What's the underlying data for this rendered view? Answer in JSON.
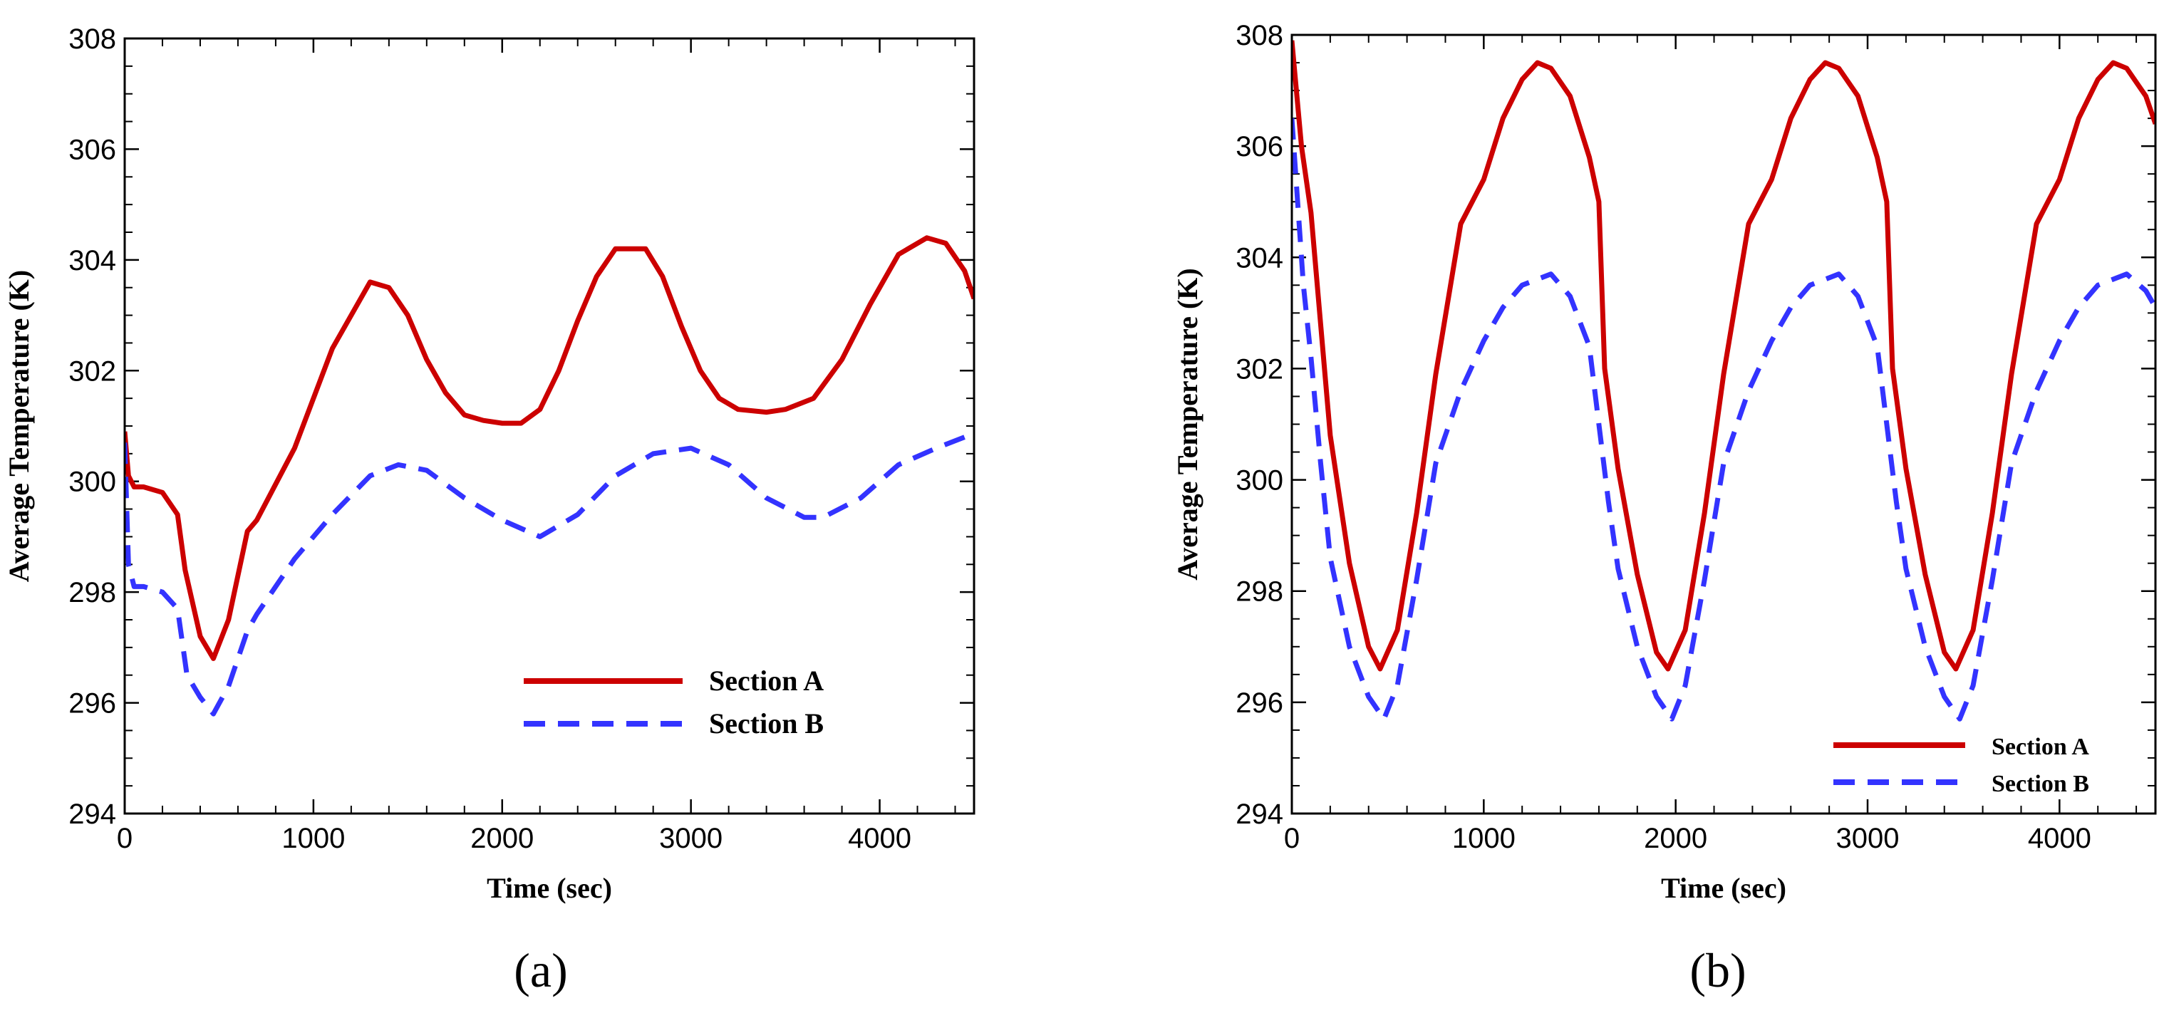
{
  "figure": {
    "panel_a_label": "(a)",
    "panel_b_label": "(b)"
  },
  "colors": {
    "section_a": "#cc0000",
    "section_b": "#3333ff"
  },
  "chart_data": [
    {
      "type": "line",
      "panel": "(a)",
      "title": "",
      "xlabel": "Time (sec)",
      "ylabel": "Average Temperature (K)",
      "xlim": [
        0,
        4500
      ],
      "ylim": [
        294,
        308
      ],
      "xticks": [
        0,
        1000,
        2000,
        3000,
        4000
      ],
      "xtick_labels": [
        "0",
        "1000",
        "2000",
        "3000",
        "4000"
      ],
      "yticks": [
        294,
        296,
        298,
        300,
        302,
        304,
        306,
        308
      ],
      "ytick_labels": [
        "294",
        "296",
        "298",
        "300",
        "302",
        "304",
        "306",
        "308"
      ],
      "legend_position": "lower-right",
      "series": [
        {
          "name": "Section A",
          "style": "solid",
          "x": [
            0,
            20,
            50,
            100,
            200,
            280,
            320,
            400,
            470,
            550,
            650,
            700,
            900,
            1100,
            1300,
            1400,
            1500,
            1600,
            1700,
            1800,
            1900,
            2000,
            2100,
            2200,
            2300,
            2400,
            2500,
            2600,
            2700,
            2760,
            2850,
            2950,
            3050,
            3150,
            3250,
            3400,
            3500,
            3650,
            3800,
            3950,
            4100,
            4250,
            4350,
            4450,
            4500
          ],
          "y": [
            300.9,
            300.1,
            299.9,
            299.9,
            299.8,
            299.4,
            298.4,
            297.2,
            296.8,
            297.5,
            299.1,
            299.3,
            300.6,
            302.4,
            303.6,
            303.5,
            303.0,
            302.2,
            301.6,
            301.2,
            301.1,
            301.05,
            301.05,
            301.3,
            302.0,
            302.9,
            303.7,
            304.2,
            304.2,
            304.2,
            303.7,
            302.8,
            302.0,
            301.5,
            301.3,
            301.25,
            301.3,
            301.5,
            302.2,
            303.2,
            304.1,
            304.4,
            304.3,
            303.8,
            303.3
          ]
        },
        {
          "name": "Section B",
          "style": "dashed",
          "x": [
            0,
            20,
            50,
            100,
            200,
            280,
            330,
            400,
            470,
            550,
            650,
            700,
            900,
            1100,
            1300,
            1450,
            1600,
            1800,
            2000,
            2200,
            2400,
            2600,
            2800,
            3000,
            3200,
            3400,
            3600,
            3700,
            3900,
            4100,
            4300,
            4450,
            4500
          ],
          "y": [
            300.7,
            298.5,
            298.1,
            298.1,
            298.0,
            297.7,
            296.5,
            296.1,
            295.8,
            296.3,
            297.3,
            297.6,
            298.6,
            299.4,
            300.1,
            300.3,
            300.2,
            299.7,
            299.3,
            299.0,
            299.4,
            300.1,
            300.5,
            300.6,
            300.3,
            299.7,
            299.35,
            299.35,
            299.7,
            300.3,
            300.6,
            300.8,
            300.75
          ]
        }
      ]
    },
    {
      "type": "line",
      "panel": "(b)",
      "title": "",
      "xlabel": "Time (sec)",
      "ylabel": "Average Temperature (K)",
      "xlim": [
        0,
        4500
      ],
      "ylim": [
        294,
        308
      ],
      "xticks": [
        0,
        1000,
        2000,
        3000,
        4000
      ],
      "xtick_labels": [
        "0",
        "1000",
        "2000",
        "3000",
        "4000"
      ],
      "yticks": [
        294,
        296,
        298,
        300,
        302,
        304,
        306,
        308
      ],
      "ytick_labels": [
        "294",
        "296",
        "298",
        "300",
        "302",
        "304",
        "306",
        "308"
      ],
      "legend_position": "lower-right",
      "series": [
        {
          "name": "Section A",
          "style": "solid",
          "x": [
            0,
            50,
            100,
            150,
            200,
            300,
            400,
            460,
            550,
            650,
            750,
            880,
            1000,
            1100,
            1200,
            1280,
            1350,
            1450,
            1550,
            1600,
            1630,
            1700,
            1800,
            1900,
            1960,
            2050,
            2150,
            2250,
            2380,
            2500,
            2600,
            2700,
            2780,
            2850,
            2950,
            3050,
            3100,
            3130,
            3200,
            3300,
            3400,
            3460,
            3550,
            3650,
            3750,
            3880,
            4000,
            4100,
            4200,
            4280,
            4350,
            4450,
            4500
          ],
          "y": [
            307.9,
            306.0,
            304.8,
            302.8,
            300.8,
            298.5,
            297.0,
            296.6,
            297.3,
            299.4,
            301.9,
            304.6,
            305.4,
            306.5,
            307.2,
            307.5,
            307.4,
            306.9,
            305.8,
            305.0,
            302.0,
            300.2,
            298.3,
            296.9,
            296.6,
            297.3,
            299.4,
            301.9,
            304.6,
            305.4,
            306.5,
            307.2,
            307.5,
            307.4,
            306.9,
            305.8,
            305.0,
            302.0,
            300.2,
            298.3,
            296.9,
            296.6,
            297.3,
            299.4,
            301.9,
            304.6,
            305.4,
            306.5,
            307.2,
            307.5,
            307.4,
            306.9,
            306.4
          ]
        },
        {
          "name": "Section B",
          "style": "dashed",
          "x": [
            0,
            30,
            60,
            100,
            150,
            200,
            300,
            400,
            480,
            550,
            650,
            750,
            880,
            1000,
            1100,
            1200,
            1350,
            1450,
            1550,
            1600,
            1650,
            1700,
            1800,
            1900,
            1980,
            2050,
            2150,
            2250,
            2380,
            2500,
            2600,
            2700,
            2850,
            2950,
            3050,
            3100,
            3150,
            3200,
            3300,
            3400,
            3480,
            3550,
            3650,
            3750,
            3880,
            4000,
            4100,
            4200,
            4350,
            4450,
            4500
          ],
          "y": [
            306.5,
            305.0,
            303.5,
            302.2,
            300.3,
            298.6,
            297.0,
            296.1,
            295.7,
            296.3,
            298.2,
            300.3,
            301.6,
            302.5,
            303.1,
            303.5,
            303.7,
            303.3,
            302.4,
            301.0,
            299.6,
            298.4,
            297.0,
            296.1,
            295.7,
            296.3,
            298.2,
            300.3,
            301.6,
            302.5,
            303.1,
            303.5,
            303.7,
            303.3,
            302.4,
            301.0,
            299.6,
            298.4,
            297.0,
            296.1,
            295.7,
            296.3,
            298.2,
            300.3,
            301.6,
            302.5,
            303.1,
            303.5,
            303.7,
            303.4,
            303.1
          ]
        }
      ]
    }
  ]
}
